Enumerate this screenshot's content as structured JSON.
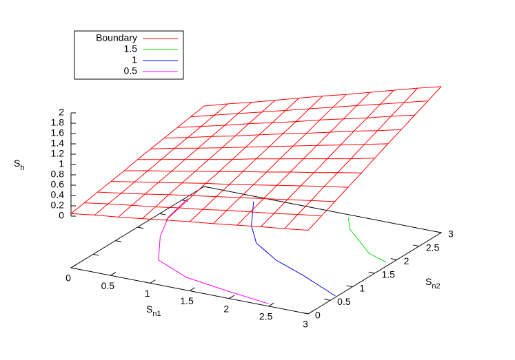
{
  "chart_data": {
    "type": "surface3d",
    "xlabel": {
      "text": "S",
      "sub": "n1"
    },
    "ylabel": {
      "text": "S",
      "sub": "n2"
    },
    "zlabel": {
      "text": "S",
      "sub": "h"
    },
    "xlim": [
      0,
      3
    ],
    "ylim": [
      0,
      3
    ],
    "zlim": [
      0,
      2
    ],
    "xticks": [
      0,
      0.5,
      1,
      1.5,
      2,
      2.5,
      3
    ],
    "yticks": [
      0,
      0.5,
      1,
      1.5,
      2,
      2.5,
      3
    ],
    "zticks": [
      0,
      0.2,
      0.4,
      0.6,
      0.8,
      1,
      1.2,
      1.4,
      1.6,
      1.8,
      2
    ],
    "legend": "top left",
    "surface": {
      "name": "Boundary",
      "color": "#ff0000",
      "x": [
        0,
        0.3,
        0.6,
        0.9,
        1.2,
        1.5,
        1.8,
        2.1,
        2.4,
        2.7,
        3
      ],
      "y": [
        0,
        0.3,
        0.6,
        0.9,
        1.2,
        1.5,
        1.8,
        2.1,
        2.4,
        2.7,
        3
      ],
      "z": [
        [
          0.05,
          0.11,
          0.16,
          0.22,
          0.28,
          0.34,
          0.39,
          0.45,
          0.51,
          0.56,
          0.62
        ],
        [
          0.1,
          0.17,
          0.23,
          0.29,
          0.36,
          0.42,
          0.49,
          0.55,
          0.61,
          0.68,
          0.74
        ],
        [
          0.15,
          0.22,
          0.29,
          0.37,
          0.44,
          0.51,
          0.58,
          0.65,
          0.72,
          0.79,
          0.86
        ],
        [
          0.2,
          0.28,
          0.36,
          0.44,
          0.52,
          0.59,
          0.67,
          0.75,
          0.83,
          0.91,
          0.98
        ],
        [
          0.25,
          0.34,
          0.42,
          0.51,
          0.59,
          0.68,
          0.76,
          0.85,
          0.93,
          1.02,
          1.1
        ],
        [
          0.31,
          0.4,
          0.49,
          0.58,
          0.67,
          0.77,
          0.86,
          0.95,
          1.04,
          1.13,
          1.23
        ],
        [
          0.36,
          0.46,
          0.55,
          0.65,
          0.75,
          0.85,
          0.95,
          1.05,
          1.15,
          1.25,
          1.35
        ],
        [
          0.41,
          0.51,
          0.62,
          0.72,
          0.83,
          0.94,
          1.04,
          1.15,
          1.26,
          1.36,
          1.47
        ],
        [
          0.46,
          0.57,
          0.68,
          0.8,
          0.91,
          1.02,
          1.14,
          1.25,
          1.36,
          1.48,
          1.59
        ],
        [
          0.51,
          0.63,
          0.75,
          0.87,
          0.99,
          1.11,
          1.23,
          1.35,
          1.47,
          1.59,
          1.71
        ],
        [
          0.56,
          0.69,
          0.81,
          0.94,
          1.07,
          1.2,
          1.32,
          1.45,
          1.58,
          1.71,
          1.83
        ]
      ]
    },
    "series": [
      {
        "name": "1.5",
        "color": "#00dd00",
        "x": [
          1.87,
          2.07,
          2.63,
          2.94
        ],
        "y": [
          2.92,
          2.6,
          2.03,
          1.87
        ]
      },
      {
        "name": "1",
        "color": "#0000ff",
        "x": [
          0.71,
          1.07,
          1.39,
          1.85,
          2.35,
          2.98
        ],
        "y": [
          2.85,
          2.16,
          1.7,
          1.33,
          1.05,
          0.65
        ]
      },
      {
        "name": "0.5",
        "color": "#ff00ff",
        "x": [
          0.03,
          0.14,
          0.36,
          0.72,
          1.26,
          1.87,
          2.46
        ],
        "y": [
          2.58,
          1.94,
          1.37,
          0.69,
          0.36,
          0.2,
          0.07
        ]
      }
    ]
  }
}
